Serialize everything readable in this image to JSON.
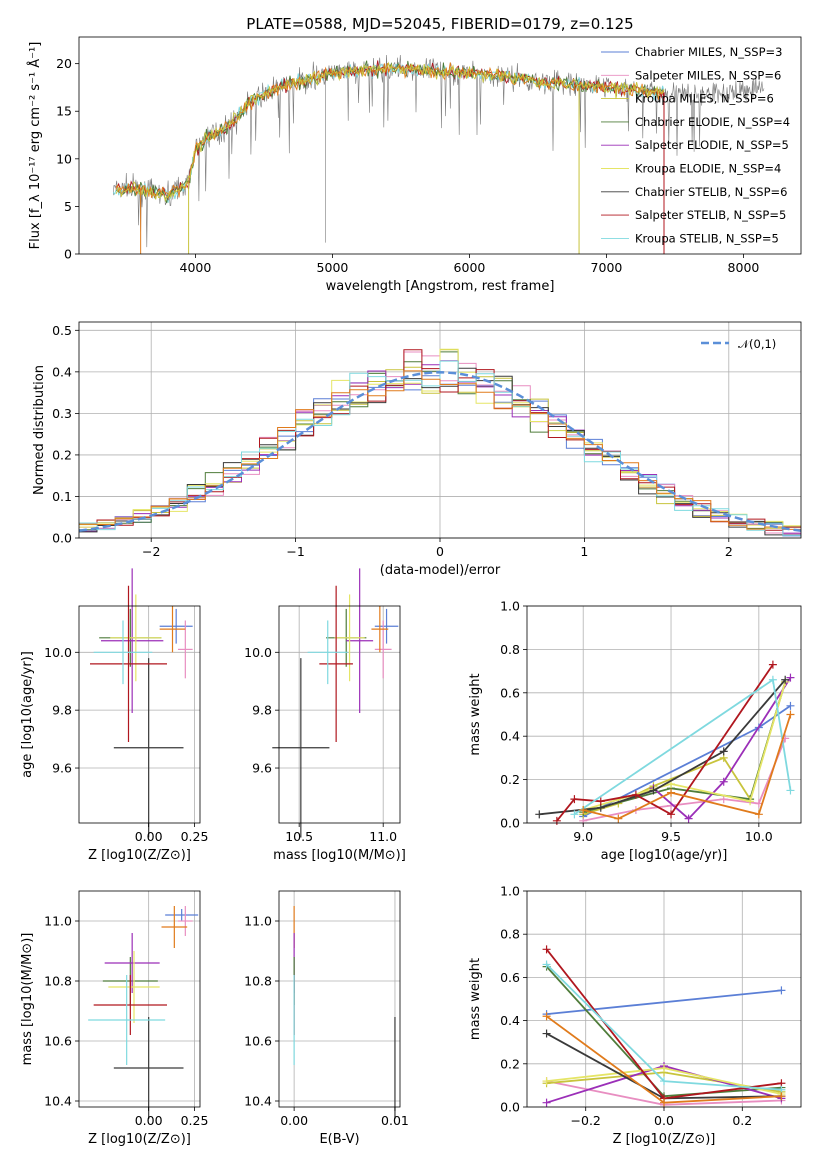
{
  "title": "PLATE=0588, MJD=52045, FIBERID=0179, z=0.125",
  "colors": {
    "chabrier_miles": "#5b7fd6",
    "salpeter_miles": "#e88ec1",
    "kroupa_miles": "#c8c43c",
    "chabrier_elodie": "#4f7c3a",
    "salpeter_elodie": "#9b2fb8",
    "kroupa_elodie": "#e5e566",
    "chabrier_stelib": "#3a3a3a",
    "salpeter_stelib": "#b0171f",
    "kroupa_stelib": "#7fd9df",
    "orange": "#e07b1c",
    "normal": "#5b8fd8"
  },
  "chart_data": [
    {
      "type": "line",
      "id": "spectrum",
      "xlabel": "wavelength [Angstrom, rest frame]",
      "ylabel": "Flux [f_λ 10⁻¹⁷ erg cm⁻² s⁻¹ Å⁻¹]",
      "xlim": [
        3150,
        8420
      ],
      "ylim": [
        0,
        22.8
      ],
      "xticks": [
        4000,
        5000,
        6000,
        7000,
        8000
      ],
      "yticks": [
        0,
        5,
        10,
        15,
        20
      ],
      "legend_position": "top-right",
      "legend": [
        {
          "label": "Chabrier MILES, N_SSP=3",
          "color_key": "chabrier_miles"
        },
        {
          "label": "Salpeter MILES, N_SSP=6",
          "color_key": "salpeter_miles"
        },
        {
          "label": "Kroupa MILES, N_SSP=6",
          "color_key": "kroupa_miles"
        },
        {
          "label": "Chabrier ELODIE, N_SSP=4",
          "color_key": "chabrier_elodie"
        },
        {
          "label": "Salpeter ELODIE, N_SSP=5",
          "color_key": "salpeter_elodie"
        },
        {
          "label": "Kroupa ELODIE, N_SSP=4",
          "color_key": "kroupa_elodie"
        },
        {
          "label": "Chabrier STELIB, N_SSP=6",
          "color_key": "chabrier_stelib"
        },
        {
          "label": "Salpeter STELIB, N_SSP=5",
          "color_key": "salpeter_stelib"
        },
        {
          "label": "Kroupa STELIB, N_SSP=5",
          "color_key": "kroupa_stelib"
        }
      ],
      "continuum_x": [
        3400,
        3600,
        3800,
        3950,
        4000,
        4100,
        4200,
        4300,
        4400,
        4600,
        4800,
        5000,
        5200,
        5400,
        5600,
        5800,
        6000,
        6200,
        6400,
        6600,
        6800,
        7000,
        7200,
        7400,
        7600,
        7800,
        8000,
        8150
      ],
      "continuum_y": [
        6.8,
        6.8,
        6.2,
        7.5,
        11.0,
        12.5,
        13.0,
        14.2,
        16.0,
        17.5,
        18.2,
        19.0,
        19.3,
        19.5,
        19.4,
        19.2,
        19.0,
        18.8,
        18.4,
        18.0,
        17.8,
        17.5,
        17.3,
        17.0,
        16.8,
        16.8,
        17.2,
        17.4
      ]
    },
    {
      "type": "histogram",
      "id": "residuals",
      "xlabel": "(data-model)/error",
      "ylabel": "Normed distribution",
      "xlim": [
        -2.5,
        2.5
      ],
      "ylim": [
        0,
        0.52
      ],
      "xticks": [
        -2,
        -1,
        0,
        1,
        2
      ],
      "yticks": [
        0.0,
        0.1,
        0.2,
        0.3,
        0.4,
        0.5
      ],
      "grid": true,
      "legend_position": "top-right",
      "normal_label": "𝒩(0,1)",
      "bin_width": 0.125
    },
    {
      "type": "scatter",
      "id": "age-vs-Z",
      "xlabel": "Z [log10(Z/Z⊙)]",
      "ylabel": "age [log10(age/yr)]",
      "xlim": [
        -0.38,
        0.28
      ],
      "ylim": [
        9.41,
        10.16
      ],
      "xticks": [
        0.0,
        0.25
      ],
      "yticks": [
        9.6,
        9.8,
        10.0
      ],
      "grid": true,
      "points": [
        {
          "x": 0.15,
          "y": 10.09,
          "xerr": 0.09,
          "yerr": 0.06,
          "c": "chabrier_miles"
        },
        {
          "x": 0.2,
          "y": 10.01,
          "xerr": 0.04,
          "yerr": 0.1,
          "c": "salpeter_miles"
        },
        {
          "x": 0.13,
          "y": 10.08,
          "xerr": 0.07,
          "yerr": 0.08,
          "c": "orange"
        },
        {
          "x": -0.1,
          "y": 10.05,
          "xerr": 0.17,
          "yerr": 0.1,
          "c": "chabrier_elodie"
        },
        {
          "x": -0.09,
          "y": 10.04,
          "xerr": 0.17,
          "yerr": 0.25,
          "c": "salpeter_elodie"
        },
        {
          "x": -0.07,
          "y": 10.05,
          "xerr": 0.14,
          "yerr": 0.15,
          "c": "kroupa_elodie"
        },
        {
          "x": 0.0,
          "y": 9.67,
          "xerr": 0.19,
          "yerr": 0.31,
          "c": "chabrier_stelib"
        },
        {
          "x": -0.11,
          "y": 9.96,
          "xerr": 0.21,
          "yerr": 0.27,
          "c": "salpeter_stelib"
        },
        {
          "x": -0.14,
          "y": 10.0,
          "xerr": 0.16,
          "yerr": 0.11,
          "c": "kroupa_stelib"
        }
      ]
    },
    {
      "type": "scatter",
      "id": "age-vs-mass",
      "xlabel": "mass [log10(M/M⊙)]",
      "ylabel": "",
      "xlim": [
        10.38,
        11.1
      ],
      "ylim": [
        9.41,
        10.16
      ],
      "xticks": [
        10.5,
        11.0
      ],
      "yticks": [
        9.6,
        9.8,
        10.0
      ],
      "grid": true,
      "points": [
        {
          "x": 11.02,
          "y": 10.09,
          "xerr": 0.07,
          "yerr": 0.06,
          "c": "chabrier_miles"
        },
        {
          "x": 11.0,
          "y": 10.01,
          "xerr": 0.05,
          "yerr": 0.1,
          "c": "salpeter_miles"
        },
        {
          "x": 10.98,
          "y": 10.08,
          "xerr": 0.05,
          "yerr": 0.08,
          "c": "orange"
        },
        {
          "x": 10.78,
          "y": 10.05,
          "xerr": 0.12,
          "yerr": 0.1,
          "c": "chabrier_elodie"
        },
        {
          "x": 10.86,
          "y": 10.04,
          "xerr": 0.08,
          "yerr": 0.25,
          "c": "salpeter_elodie"
        },
        {
          "x": 10.8,
          "y": 10.05,
          "xerr": 0.09,
          "yerr": 0.15,
          "c": "kroupa_elodie"
        },
        {
          "x": 10.51,
          "y": 9.67,
          "xerr": 0.17,
          "yerr": 0.31,
          "c": "chabrier_stelib"
        },
        {
          "x": 10.72,
          "y": 9.96,
          "xerr": 0.1,
          "yerr": 0.27,
          "c": "salpeter_stelib"
        },
        {
          "x": 10.67,
          "y": 10.0,
          "xerr": 0.12,
          "yerr": 0.11,
          "c": "kroupa_stelib"
        }
      ]
    },
    {
      "type": "line",
      "id": "weight-vs-age",
      "xlabel": "age [log10(age/yr)]",
      "ylabel": "mass weight",
      "xlim": [
        8.68,
        10.24
      ],
      "ylim": [
        0,
        1.0
      ],
      "xticks": [
        9.0,
        9.5,
        10.0
      ],
      "yticks": [
        0.0,
        0.2,
        0.4,
        0.6,
        0.8,
        1.0
      ],
      "grid": true,
      "series": [
        {
          "c": "chabrier_miles",
          "x": [
            9.0,
            10.0,
            10.18
          ],
          "y": [
            0.03,
            0.44,
            0.54
          ]
        },
        {
          "c": "salpeter_miles",
          "x": [
            9.0,
            9.3,
            9.5,
            9.8,
            10.0,
            10.15
          ],
          "y": [
            0.01,
            0.06,
            0.08,
            0.11,
            0.09,
            0.39
          ]
        },
        {
          "c": "kroupa_miles",
          "x": [
            9.0,
            9.2,
            9.4,
            9.8,
            9.95,
            10.15
          ],
          "y": [
            0.04,
            0.09,
            0.17,
            0.3,
            0.11,
            0.65
          ]
        },
        {
          "c": "chabrier_elodie",
          "x": [
            9.0,
            9.5,
            9.95,
            10.15
          ],
          "y": [
            0.05,
            0.16,
            0.11,
            0.65
          ]
        },
        {
          "c": "salpeter_elodie",
          "x": [
            9.4,
            9.6,
            9.8,
            10.18
          ],
          "y": [
            0.16,
            0.02,
            0.19,
            0.67
          ]
        },
        {
          "c": "kroupa_elodie",
          "x": [
            9.0,
            9.5,
            9.95,
            10.15
          ],
          "y": [
            0.06,
            0.18,
            0.1,
            0.65
          ]
        },
        {
          "c": "chabrier_stelib",
          "x": [
            8.75,
            9.1,
            9.4,
            9.8,
            10.15
          ],
          "y": [
            0.04,
            0.07,
            0.15,
            0.33,
            0.66
          ]
        },
        {
          "c": "salpeter_stelib",
          "x": [
            8.85,
            8.95,
            9.1,
            9.3,
            9.5,
            10.08
          ],
          "y": [
            0.01,
            0.11,
            0.1,
            0.13,
            0.04,
            0.73
          ]
        },
        {
          "c": "kroupa_stelib",
          "x": [
            8.95,
            10.08,
            10.18
          ],
          "y": [
            0.04,
            0.66,
            0.15
          ]
        },
        {
          "c": "orange",
          "x": [
            9.0,
            9.2,
            9.5,
            10.0,
            10.18
          ],
          "y": [
            0.06,
            0.02,
            0.14,
            0.04,
            0.5
          ]
        }
      ]
    },
    {
      "type": "scatter",
      "id": "mass-vs-Z",
      "xlabel": "Z [log10(Z/Z⊙)]",
      "ylabel": "mass [log10(M/M⊙)]",
      "xlim": [
        -0.38,
        0.28
      ],
      "ylim": [
        10.38,
        11.1
      ],
      "xticks": [
        0.0,
        0.25
      ],
      "yticks": [
        10.4,
        10.6,
        10.8,
        11.0
      ],
      "grid": true,
      "points": [
        {
          "x": 0.18,
          "y": 11.02,
          "xerr": 0.09,
          "yerr": 0.02,
          "c": "chabrier_miles"
        },
        {
          "x": 0.2,
          "y": 11.0,
          "xerr": 0.04,
          "yerr": 0.05,
          "c": "salpeter_miles"
        },
        {
          "x": 0.14,
          "y": 10.98,
          "xerr": 0.07,
          "yerr": 0.07,
          "c": "orange"
        },
        {
          "x": -0.1,
          "y": 10.8,
          "xerr": 0.15,
          "yerr": 0.08,
          "c": "chabrier_elodie"
        },
        {
          "x": -0.09,
          "y": 10.86,
          "xerr": 0.15,
          "yerr": 0.1,
          "c": "salpeter_elodie"
        },
        {
          "x": -0.08,
          "y": 10.78,
          "xerr": 0.14,
          "yerr": 0.12,
          "c": "kroupa_elodie"
        },
        {
          "x": 0.0,
          "y": 10.51,
          "xerr": 0.19,
          "yerr": 0.17,
          "c": "chabrier_stelib"
        },
        {
          "x": -0.1,
          "y": 10.72,
          "xerr": 0.2,
          "yerr": 0.1,
          "c": "salpeter_stelib"
        },
        {
          "x": -0.12,
          "y": 10.67,
          "xerr": 0.21,
          "yerr": 0.15,
          "c": "kroupa_stelib"
        }
      ]
    },
    {
      "type": "scatter",
      "id": "mass-vs-ebv",
      "xlabel": "E(B-V)",
      "ylabel": "",
      "xlim": [
        -0.0015,
        0.0105
      ],
      "ylim": [
        10.38,
        11.1
      ],
      "xticks": [
        0.0,
        0.01
      ],
      "yticks": [
        10.4,
        10.6,
        10.8,
        11.0
      ],
      "grid": true,
      "points": [
        {
          "x": 0.0,
          "y": 10.98,
          "xerr": 0,
          "yerr": 0.07,
          "c": "orange"
        },
        {
          "x": 0.0,
          "y": 10.86,
          "xerr": 0,
          "yerr": 0.1,
          "c": "salpeter_elodie"
        },
        {
          "x": 0.0,
          "y": 10.8,
          "xerr": 0,
          "yerr": 0.08,
          "c": "chabrier_elodie"
        },
        {
          "x": 0.0,
          "y": 10.72,
          "xerr": 0,
          "yerr": 0.1,
          "c": "salpeter_stelib"
        },
        {
          "x": 0.0,
          "y": 10.67,
          "xerr": 0,
          "yerr": 0.15,
          "c": "kroupa_stelib"
        },
        {
          "x": 0.01,
          "y": 10.51,
          "xerr": 0,
          "yerr": 0.17,
          "c": "chabrier_stelib"
        }
      ]
    },
    {
      "type": "line",
      "id": "weight-vs-Z",
      "xlabel": "Z [log10(Z/Z⊙)]",
      "ylabel": "mass weight",
      "xlim": [
        -0.35,
        0.35
      ],
      "ylim": [
        0,
        1.0
      ],
      "xticks": [
        -0.2,
        0.0,
        0.2
      ],
      "yticks": [
        0.0,
        0.2,
        0.4,
        0.6,
        0.8,
        1.0
      ],
      "grid": true,
      "series": [
        {
          "c": "chabrier_miles",
          "x": [
            -0.3,
            0.3
          ],
          "y": [
            0.43,
            0.54
          ]
        },
        {
          "c": "salpeter_miles",
          "x": [
            -0.3,
            0.0,
            0.3
          ],
          "y": [
            0.12,
            0.01,
            0.03
          ]
        },
        {
          "c": "kroupa_miles",
          "x": [
            -0.3,
            0.0,
            0.3
          ],
          "y": [
            0.11,
            0.16,
            0.07
          ]
        },
        {
          "c": "chabrier_elodie",
          "x": [
            -0.3,
            0.0,
            0.3
          ],
          "y": [
            0.65,
            0.05,
            0.09
          ]
        },
        {
          "c": "salpeter_elodie",
          "x": [
            -0.3,
            0.0,
            0.3
          ],
          "y": [
            0.02,
            0.19,
            0.04
          ]
        },
        {
          "c": "kroupa_elodie",
          "x": [
            -0.3,
            0.0,
            0.3
          ],
          "y": [
            0.12,
            0.18,
            0.06
          ]
        },
        {
          "c": "chabrier_stelib",
          "x": [
            -0.3,
            0.0,
            0.3
          ],
          "y": [
            0.34,
            0.04,
            0.05
          ]
        },
        {
          "c": "salpeter_stelib",
          "x": [
            -0.3,
            0.0,
            0.3
          ],
          "y": [
            0.73,
            0.04,
            0.11
          ]
        },
        {
          "c": "kroupa_stelib",
          "x": [
            -0.3,
            0.0,
            0.3
          ],
          "y": [
            0.66,
            0.12,
            0.08
          ]
        },
        {
          "c": "orange",
          "x": [
            -0.3,
            0.0,
            0.3
          ],
          "y": [
            0.42,
            0.02,
            0.05
          ]
        }
      ]
    }
  ]
}
